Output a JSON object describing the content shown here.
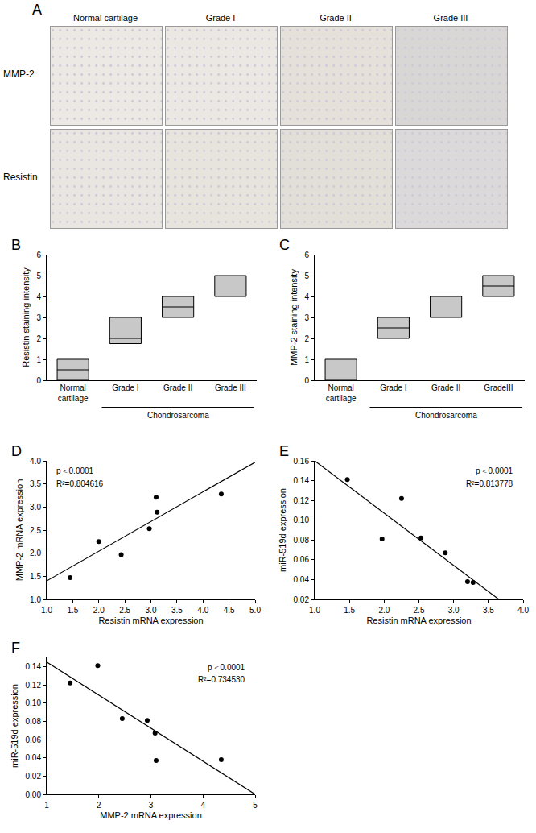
{
  "panel_a": {
    "label": "A",
    "columns": [
      "Normal cartilage",
      "Grade I",
      "Grade II",
      "Grade III"
    ],
    "rows": [
      "MMP-2",
      "Resistin"
    ]
  },
  "chart_data": [
    {
      "label": "B",
      "type": "box",
      "categories": [
        "Normal cartilage",
        "Grade I",
        "Grade II",
        "Grade III"
      ],
      "group": {
        "label": "Chondrosarcoma",
        "from": "Grade I",
        "to": "Grade III"
      },
      "low": [
        0,
        1.75,
        3,
        4
      ],
      "high": [
        1,
        3,
        4,
        5
      ],
      "median": [
        0.5,
        2,
        3.5,
        null
      ],
      "ylabel": "Resistin staining intensity",
      "ylim": [
        0,
        6
      ],
      "yticks": [
        0,
        1,
        2,
        3,
        4,
        5,
        6
      ],
      "color": "#c8c8c8"
    },
    {
      "label": "C",
      "type": "box",
      "categories": [
        "Normal cartilage",
        "Grade I",
        "Grade II",
        "GradeIII"
      ],
      "group": {
        "label": "Chondrosarcoma",
        "from": "Grade I",
        "to": "GradeIII"
      },
      "low": [
        0,
        2,
        3,
        4
      ],
      "high": [
        1,
        3,
        4,
        5
      ],
      "median": [
        null,
        2.5,
        null,
        4.5
      ],
      "ylabel": "MMP-2 staining intensity",
      "ylim": [
        0,
        6
      ],
      "yticks": [
        0,
        1,
        2,
        3,
        4,
        5,
        6
      ],
      "color": "#c8c8c8"
    },
    {
      "label": "D",
      "type": "scatter",
      "x": [
        1.45,
        2.0,
        2.43,
        2.97,
        3.1,
        3.12,
        4.35
      ],
      "values": [
        1.47,
        2.25,
        1.97,
        2.53,
        3.21,
        2.89,
        3.28
      ],
      "fit": {
        "x": [
          1.0,
          5.0
        ],
        "values": [
          1.4,
          3.97
        ]
      },
      "annotations": [
        "p＜0.0001",
        "R²=0.804616"
      ],
      "xlabel": "Resistin mRNA expression",
      "ylabel": "MMP-2 mRNA expression",
      "xlim": [
        1,
        5
      ],
      "xticks": [
        {
          "value": 1,
          "label": "1.0"
        },
        {
          "value": 1.5,
          "label": "1.5"
        },
        {
          "value": 2,
          "label": "2.0"
        },
        {
          "value": 2.5,
          "label": "2.5"
        },
        {
          "value": 3,
          "label": "3.0"
        },
        {
          "value": 3.5,
          "label": "3.5"
        },
        {
          "value": 4,
          "label": "4.0"
        },
        {
          "value": 4.5,
          "label": "4.5"
        },
        {
          "value": 5,
          "label": "5.0"
        }
      ],
      "ylim": [
        1,
        4
      ],
      "yticks": [
        {
          "value": 1,
          "label": "1.0"
        },
        {
          "value": 1.5,
          "label": "1.5"
        },
        {
          "value": 2,
          "label": "2.0"
        },
        {
          "value": 2.5,
          "label": "2.5"
        },
        {
          "value": 3,
          "label": "3.0"
        },
        {
          "value": 3.5,
          "label": "3.5"
        },
        {
          "value": 4,
          "label": "4.0"
        }
      ],
      "color": "#000000"
    },
    {
      "label": "E",
      "type": "scatter",
      "x": [
        1.47,
        1.97,
        2.25,
        2.53,
        2.88,
        3.2,
        3.28
      ],
      "values": [
        0.141,
        0.081,
        0.122,
        0.082,
        0.067,
        0.038,
        0.037
      ],
      "fit": {
        "x": [
          1.0,
          3.65
        ],
        "values": [
          0.16,
          0.02
        ]
      },
      "annotations": [
        "p＜0.0001",
        "R²=0.813778"
      ],
      "xlabel": "Resistin mRNA expression",
      "ylabel": "miR-519d expression",
      "xlim": [
        1,
        4
      ],
      "xticks": [
        {
          "value": 1,
          "label": "1.0"
        },
        {
          "value": 1.5,
          "label": "1.5"
        },
        {
          "value": 2,
          "label": "2.0"
        },
        {
          "value": 2.5,
          "label": "2.5"
        },
        {
          "value": 3,
          "label": "3.0"
        },
        {
          "value": 3.5,
          "label": "3.5"
        },
        {
          "value": 4,
          "label": "4.0"
        }
      ],
      "ylim": [
        0.02,
        0.16
      ],
      "yticks": [
        {
          "value": 0.02,
          "label": "0.02"
        },
        {
          "value": 0.04,
          "label": "0.04"
        },
        {
          "value": 0.06,
          "label": "0.06"
        },
        {
          "value": 0.08,
          "label": "0.08"
        },
        {
          "value": 0.1,
          "label": "0.10"
        },
        {
          "value": 0.12,
          "label": "0.12"
        },
        {
          "value": 0.14,
          "label": "0.14"
        },
        {
          "value": 0.16,
          "label": "0.16"
        }
      ],
      "color": "#000000"
    },
    {
      "label": "F",
      "type": "scatter",
      "x": [
        1.45,
        1.98,
        2.45,
        2.93,
        3.08,
        3.1,
        4.35
      ],
      "values": [
        0.122,
        0.141,
        0.083,
        0.081,
        0.067,
        0.037,
        0.038
      ],
      "fit": {
        "x": [
          1.0,
          5.0
        ],
        "values": [
          0.145,
          0.0
        ]
      },
      "annotations": [
        "p＜0.0001",
        "R²=0.734530"
      ],
      "xlabel": "MMP-2 mRNA expression",
      "ylabel": "miR-519d expression",
      "xlim": [
        1,
        5
      ],
      "xticks": [
        1,
        2,
        3,
        4,
        5
      ],
      "ylim": [
        0,
        0.15
      ],
      "yticks": [
        {
          "value": 0,
          "label": "0.00"
        },
        {
          "value": 0.02,
          "label": "0.02"
        },
        {
          "value": 0.04,
          "label": "0.04"
        },
        {
          "value": 0.06,
          "label": "0.06"
        },
        {
          "value": 0.08,
          "label": "0.08"
        },
        {
          "value": 0.1,
          "label": "0.10"
        },
        {
          "value": 0.12,
          "label": "0.12"
        },
        {
          "value": 0.14,
          "label": "0.14"
        }
      ],
      "color": "#000000"
    }
  ]
}
